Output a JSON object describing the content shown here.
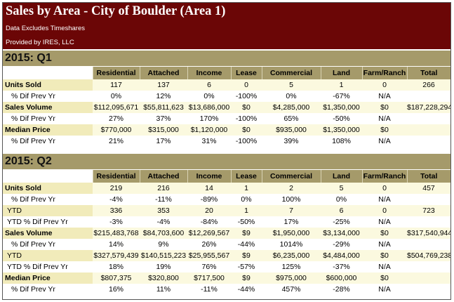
{
  "header": {
    "title": "Sales by Area - City of Boulder (Area 1)",
    "subtitle": "Data Excludes Timeshares",
    "provider": "Provided by IRES, LLC"
  },
  "columns": [
    "Residential",
    "Attached",
    "Income",
    "Lease",
    "Commercial",
    "Land",
    "Farm/Ranch",
    "Total"
  ],
  "colors": {
    "header_bg": "#6b0606",
    "section_bg": "#a59a6a",
    "row_shade": "#fbf9df",
    "label_shade": "#f1ebba"
  },
  "q1": {
    "label": "2015: Q1",
    "rows": [
      {
        "label": "Units Sold",
        "values": [
          "117",
          "137",
          "6",
          "0",
          "5",
          "1",
          "0",
          "266"
        ]
      },
      {
        "label": "% Dif Prev Yr",
        "values": [
          "0%",
          "12%",
          "0%",
          "-100%",
          "0%",
          "-67%",
          "N/A",
          ""
        ]
      },
      {
        "label": "Sales Volume",
        "values": [
          "$112,095,671",
          "$55,811,623",
          "$13,686,000",
          "$0",
          "$4,285,000",
          "$1,350,000",
          "$0",
          "$187,228,294"
        ]
      },
      {
        "label": "% Dif Prev Yr",
        "values": [
          "27%",
          "37%",
          "170%",
          "-100%",
          "65%",
          "-50%",
          "N/A",
          ""
        ]
      },
      {
        "label": "Median Price",
        "values": [
          "$770,000",
          "$315,000",
          "$1,120,000",
          "$0",
          "$935,000",
          "$1,350,000",
          "$0",
          ""
        ]
      },
      {
        "label": "% Dif Prev Yr",
        "values": [
          "21%",
          "17%",
          "31%",
          "-100%",
          "39%",
          "108%",
          "N/A",
          ""
        ]
      }
    ]
  },
  "q2": {
    "label": "2015: Q2",
    "rows": [
      {
        "label": "Units Sold",
        "values": [
          "219",
          "216",
          "14",
          "1",
          "2",
          "5",
          "0",
          "457"
        ]
      },
      {
        "label": "% Dif Prev Yr",
        "values": [
          "-4%",
          "-11%",
          "-89%",
          "0%",
          "100%",
          "0%",
          "N/A",
          ""
        ]
      },
      {
        "label": "YTD",
        "values": [
          "336",
          "353",
          "20",
          "1",
          "7",
          "6",
          "0",
          "723"
        ]
      },
      {
        "label": "YTD % Dif Prev Yr",
        "values": [
          "-3%",
          "-4%",
          "-84%",
          "-50%",
          "17%",
          "-25%",
          "N/A",
          ""
        ]
      },
      {
        "label": "Sales Volume",
        "values": [
          "$215,483,768",
          "$84,703,600",
          "$12,269,567",
          "$9",
          "$1,950,000",
          "$3,134,000",
          "$0",
          "$317,540,944"
        ]
      },
      {
        "label": "% Dif Prev Yr",
        "values": [
          "14%",
          "9%",
          "26%",
          "-44%",
          "1014%",
          "-29%",
          "N/A",
          ""
        ]
      },
      {
        "label": "YTD",
        "values": [
          "$327,579,439",
          "$140,515,223",
          "$25,955,567",
          "$9",
          "$6,235,000",
          "$4,484,000",
          "$0",
          "$504,769,238"
        ]
      },
      {
        "label": "YTD % Dif Prev Yr",
        "values": [
          "18%",
          "19%",
          "76%",
          "-57%",
          "125%",
          "-37%",
          "N/A",
          ""
        ]
      },
      {
        "label": "Median Price",
        "values": [
          "$807,375",
          "$320,800",
          "$717,500",
          "$9",
          "$975,000",
          "$600,000",
          "$0",
          ""
        ]
      },
      {
        "label": "% Dif Prev Yr",
        "values": [
          "16%",
          "11%",
          "-11%",
          "-44%",
          "457%",
          "-28%",
          "N/A",
          ""
        ]
      }
    ]
  }
}
